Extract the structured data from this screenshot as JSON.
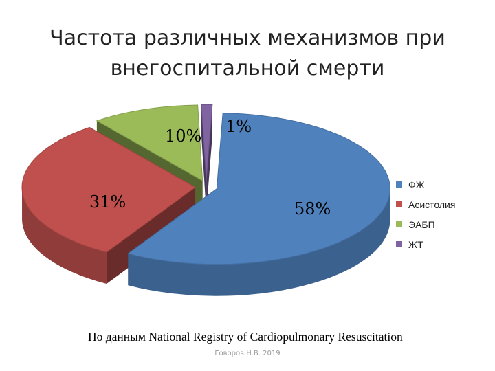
{
  "chart_data": {
    "type": "pie",
    "title_lines": [
      "Частота различных механизмов  при",
      "внегоспитальной смерти"
    ],
    "slices": [
      {
        "label": "ФЖ",
        "value": 58,
        "display": "58%",
        "color": "#4F81BD"
      },
      {
        "label": "Асистолия",
        "value": 31,
        "display": "31%",
        "color": "#C0504D"
      },
      {
        "label": "ЭАБП",
        "value": 10,
        "display": "10%",
        "color": "#9BBB59"
      },
      {
        "label": "ЖТ",
        "value": 1,
        "display": "1%",
        "color": "#8064A2"
      }
    ],
    "legend_position": "right",
    "style": "3d exploded"
  },
  "source_note": "По данным National Registry of Cardiopulmonary Resuscitation",
  "credit": "Говоров Н.В. 2019"
}
